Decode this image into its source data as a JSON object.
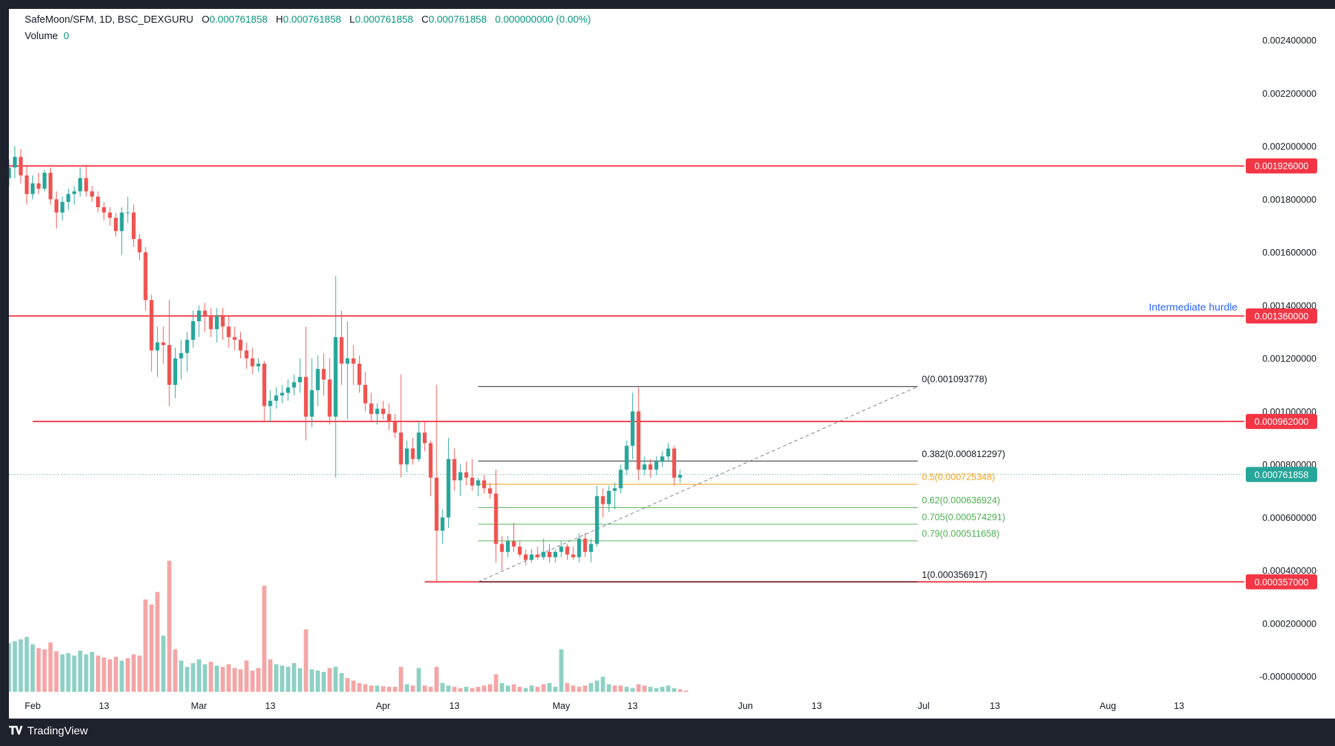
{
  "legend": {
    "symbol": "SafeMoon/SFM, 1D, BSC_DEXGURU",
    "open_label": "O",
    "open": "0.000761858",
    "high_label": "H",
    "high": "0.000761858",
    "low_label": "L",
    "low": "0.000761858",
    "close_label": "C",
    "close": "0.000761858",
    "change": "0.000000000 (0.00%)",
    "volume_label": "Volume",
    "volume": "0"
  },
  "footer": {
    "brand": "TradingView"
  },
  "colors": {
    "up": "#26a69a",
    "down": "#ef5350",
    "up_volume": "#8fd0c4",
    "down_volume": "#f4a6a6",
    "level_line": "#f23645",
    "fib_base": "#131722",
    "fib_half": "#f7a21b",
    "fib_green": "#4caf50",
    "annotation": "#2962ff",
    "grid": "#f0f3fa"
  },
  "chart_data": {
    "type": "candlestick",
    "y_axis": {
      "min": -5e-05,
      "max": 0.0025,
      "ticks": [
        {
          "value": 0.0024,
          "label": "0.002400000"
        },
        {
          "value": 0.0022,
          "label": "0.002200000"
        },
        {
          "value": 0.002,
          "label": "0.002000000"
        },
        {
          "value": 0.0018,
          "label": "0.001800000"
        },
        {
          "value": 0.0016,
          "label": "0.001600000"
        },
        {
          "value": 0.0014,
          "label": "0.001400000"
        },
        {
          "value": 0.0012,
          "label": "0.001200000"
        },
        {
          "value": 0.001,
          "label": "0.001000000"
        },
        {
          "value": 0.0008,
          "label": "0.000800000"
        },
        {
          "value": 0.0006,
          "label": "0.000600000"
        },
        {
          "value": 0.0004,
          "label": "0.000400000"
        },
        {
          "value": 0.0002,
          "label": "0.000200000"
        },
        {
          "value": 0.0,
          "label": "-0.000000000"
        }
      ]
    },
    "x_axis": {
      "start": "2022-01-28",
      "end": "2022-08-24",
      "ticks": [
        {
          "date": "2022-02-01",
          "label": "Feb"
        },
        {
          "date": "2022-02-13",
          "label": "13"
        },
        {
          "date": "2022-03-01",
          "label": "Mar"
        },
        {
          "date": "2022-03-13",
          "label": "13"
        },
        {
          "date": "2022-04-01",
          "label": "Apr"
        },
        {
          "date": "2022-04-13",
          "label": "13"
        },
        {
          "date": "2022-05-01",
          "label": "May"
        },
        {
          "date": "2022-05-13",
          "label": "13"
        },
        {
          "date": "2022-06-01",
          "label": "Jun"
        },
        {
          "date": "2022-06-13",
          "label": "13"
        },
        {
          "date": "2022-07-01",
          "label": "Jul"
        },
        {
          "date": "2022-07-13",
          "label": "13"
        },
        {
          "date": "2022-08-01",
          "label": "Aug"
        },
        {
          "date": "2022-08-13",
          "label": "13"
        }
      ]
    },
    "candles_start": "2022-01-28",
    "candles": [
      [
        0.00188,
        0.00195,
        0.00185,
        0.00192
      ],
      [
        0.00192,
        0.002,
        0.00188,
        0.00196
      ],
      [
        0.00196,
        0.00199,
        0.00186,
        0.00189
      ],
      [
        0.00189,
        0.00193,
        0.00178,
        0.00182
      ],
      [
        0.00182,
        0.00189,
        0.0018,
        0.00186
      ],
      [
        0.00186,
        0.0019,
        0.00182,
        0.00184
      ],
      [
        0.00184,
        0.00191,
        0.00183,
        0.0019
      ],
      [
        0.0019,
        0.00192,
        0.00178,
        0.0018
      ],
      [
        0.0018,
        0.00183,
        0.00169,
        0.00175
      ],
      [
        0.00175,
        0.00181,
        0.00172,
        0.00179
      ],
      [
        0.00179,
        0.00184,
        0.00176,
        0.00182
      ],
      [
        0.00182,
        0.00185,
        0.00178,
        0.00183
      ],
      [
        0.00183,
        0.00192,
        0.00181,
        0.00188
      ],
      [
        0.00188,
        0.00193,
        0.00181,
        0.00183
      ],
      [
        0.00183,
        0.00185,
        0.00179,
        0.00181
      ],
      [
        0.00181,
        0.00183,
        0.00175,
        0.00177
      ],
      [
        0.00177,
        0.00179,
        0.00172,
        0.00175
      ],
      [
        0.00175,
        0.00177,
        0.0017,
        0.00173
      ],
      [
        0.00173,
        0.00175,
        0.00166,
        0.00168
      ],
      [
        0.00168,
        0.00177,
        0.00159,
        0.00175
      ],
      [
        0.00175,
        0.00181,
        0.00171,
        0.00175
      ],
      [
        0.00175,
        0.00178,
        0.00162,
        0.00165
      ],
      [
        0.00165,
        0.00167,
        0.00157,
        0.0016
      ],
      [
        0.0016,
        0.00162,
        0.00138,
        0.00142
      ],
      [
        0.00142,
        0.00144,
        0.00115,
        0.00123
      ],
      [
        0.00123,
        0.00132,
        0.00113,
        0.00126
      ],
      [
        0.00126,
        0.00132,
        0.00118,
        0.00125
      ],
      [
        0.00125,
        0.00142,
        0.00102,
        0.0011
      ],
      [
        0.0011,
        0.00124,
        0.00105,
        0.0012
      ],
      [
        0.0012,
        0.00127,
        0.00112,
        0.00122
      ],
      [
        0.00122,
        0.0013,
        0.00115,
        0.00127
      ],
      [
        0.00127,
        0.00138,
        0.00124,
        0.00134
      ],
      [
        0.00134,
        0.0014,
        0.00128,
        0.00138
      ],
      [
        0.00138,
        0.00141,
        0.0013,
        0.00136
      ],
      [
        0.00136,
        0.00139,
        0.00128,
        0.00131
      ],
      [
        0.00131,
        0.00139,
        0.00126,
        0.00136
      ],
      [
        0.00136,
        0.00139,
        0.00127,
        0.00132
      ],
      [
        0.00132,
        0.00136,
        0.00124,
        0.00128
      ],
      [
        0.00128,
        0.00132,
        0.00123,
        0.00127
      ],
      [
        0.00127,
        0.0013,
        0.0012,
        0.00123
      ],
      [
        0.00123,
        0.00126,
        0.00116,
        0.0012
      ],
      [
        0.0012,
        0.00124,
        0.00114,
        0.00117
      ],
      [
        0.00117,
        0.0012,
        0.00115,
        0.00118
      ],
      [
        0.00118,
        0.00119,
        0.00096,
        0.00102
      ],
      [
        0.00102,
        0.00108,
        0.00096,
        0.00104
      ],
      [
        0.00104,
        0.00109,
        0.00101,
        0.00106
      ],
      [
        0.00106,
        0.0011,
        0.00103,
        0.00107
      ],
      [
        0.00107,
        0.00112,
        0.00104,
        0.00109
      ],
      [
        0.00109,
        0.00114,
        0.00106,
        0.00111
      ],
      [
        0.00111,
        0.0012,
        0.00107,
        0.00113
      ],
      [
        0.00113,
        0.00132,
        0.00089,
        0.00098
      ],
      [
        0.00098,
        0.0012,
        0.00094,
        0.00108
      ],
      [
        0.00108,
        0.00121,
        0.00102,
        0.00116
      ],
      [
        0.00116,
        0.00122,
        0.00106,
        0.00112
      ],
      [
        0.00112,
        0.0012,
        0.00095,
        0.00098
      ],
      [
        0.00098,
        0.00151,
        0.00075,
        0.00128
      ],
      [
        0.00128,
        0.00138,
        0.0011,
        0.00118
      ],
      [
        0.00118,
        0.00134,
        0.00097,
        0.0012
      ],
      [
        0.0012,
        0.00125,
        0.0011,
        0.00118
      ],
      [
        0.00118,
        0.00121,
        0.00107,
        0.0011
      ],
      [
        0.0011,
        0.00115,
        0.001,
        0.00103
      ],
      [
        0.00103,
        0.00107,
        0.00096,
        0.00099
      ],
      [
        0.00099,
        0.00103,
        0.00095,
        0.00101
      ],
      [
        0.00101,
        0.00104,
        0.00097,
        0.00099
      ],
      [
        0.00099,
        0.00103,
        0.00093,
        0.00096
      ],
      [
        0.00096,
        0.00099,
        0.0009,
        0.00092
      ],
      [
        0.00092,
        0.00114,
        0.00075,
        0.0008
      ],
      [
        0.0008,
        0.00089,
        0.00077,
        0.00086
      ],
      [
        0.00086,
        0.0009,
        0.0008,
        0.00082
      ],
      [
        0.00082,
        0.00096,
        0.00081,
        0.00092
      ],
      [
        0.00092,
        0.00096,
        0.00085,
        0.00088
      ],
      [
        0.00088,
        0.00089,
        0.00068,
        0.00075
      ],
      [
        0.00075,
        0.0011,
        0.00036,
        0.00055
      ],
      [
        0.00055,
        0.00063,
        0.0005,
        0.0006
      ],
      [
        0.0006,
        0.0009,
        0.00056,
        0.00082
      ],
      [
        0.00082,
        0.00086,
        0.0007,
        0.00074
      ],
      [
        0.00074,
        0.0008,
        0.00068,
        0.00077
      ],
      [
        0.00077,
        0.00081,
        0.00072,
        0.00075
      ],
      [
        0.00075,
        0.00082,
        0.0007,
        0.00072
      ],
      [
        0.00072,
        0.00075,
        0.00068,
        0.00074
      ],
      [
        0.00074,
        0.00076,
        0.00069,
        0.00071
      ],
      [
        0.00071,
        0.00073,
        0.00067,
        0.00069
      ],
      [
        0.00069,
        0.00078,
        0.00043,
        0.0005
      ],
      [
        0.0005,
        0.00053,
        0.0004,
        0.00047
      ],
      [
        0.00047,
        0.00053,
        0.00045,
        0.00051
      ],
      [
        0.00051,
        0.00058,
        0.00047,
        0.00049
      ],
      [
        0.00049,
        0.00051,
        0.00045,
        0.00046
      ],
      [
        0.00046,
        0.00048,
        0.00042,
        0.00044
      ],
      [
        0.00044,
        0.00048,
        0.00043,
        0.00046
      ],
      [
        0.00046,
        0.00049,
        0.00044,
        0.00045
      ],
      [
        0.00045,
        0.00052,
        0.00044,
        0.00047
      ],
      [
        0.00047,
        0.0005,
        0.00043,
        0.00045
      ],
      [
        0.00045,
        0.00048,
        0.00043,
        0.00047
      ],
      [
        0.00047,
        0.00051,
        0.00045,
        0.00049
      ],
      [
        0.00049,
        0.0005,
        0.00044,
        0.00046
      ],
      [
        0.00046,
        0.00049,
        0.00044,
        0.00045
      ],
      [
        0.00045,
        0.00054,
        0.00043,
        0.00052
      ],
      [
        0.00052,
        0.00054,
        0.00045,
        0.00047
      ],
      [
        0.00047,
        0.00052,
        0.00043,
        0.0005
      ],
      [
        0.0005,
        0.00072,
        0.00049,
        0.00068
      ],
      [
        0.00068,
        0.00071,
        0.0006,
        0.00065
      ],
      [
        0.00065,
        0.00072,
        0.00062,
        0.0007
      ],
      [
        0.0007,
        0.00073,
        0.00063,
        0.00071
      ],
      [
        0.00071,
        0.0008,
        0.00069,
        0.00078
      ],
      [
        0.00078,
        0.00089,
        0.00076,
        0.00087
      ],
      [
        0.00087,
        0.00107,
        0.00082,
        0.001
      ],
      [
        0.001,
        0.00109,
        0.00074,
        0.00078
      ],
      [
        0.00078,
        0.00083,
        0.00076,
        0.0008
      ],
      [
        0.0008,
        0.00082,
        0.00075,
        0.00078
      ],
      [
        0.00078,
        0.00083,
        0.00076,
        0.00081
      ],
      [
        0.00081,
        0.00085,
        0.00079,
        0.00083
      ],
      [
        0.00083,
        0.00088,
        0.00081,
        0.00086
      ],
      [
        0.00086,
        0.00087,
        0.00072,
        0.00075
      ],
      [
        0.00075,
        0.00078,
        0.00073,
        0.00076
      ]
    ],
    "volume": [
      [
        78,
        1
      ],
      [
        81,
        1
      ],
      [
        84,
        1
      ],
      [
        88,
        1
      ],
      [
        76,
        1
      ],
      [
        70,
        0
      ],
      [
        68,
        0
      ],
      [
        79,
        0
      ],
      [
        65,
        0
      ],
      [
        60,
        1
      ],
      [
        62,
        1
      ],
      [
        58,
        1
      ],
      [
        66,
        1
      ],
      [
        60,
        1
      ],
      [
        64,
        1
      ],
      [
        58,
        0
      ],
      [
        55,
        0
      ],
      [
        52,
        0
      ],
      [
        56,
        0
      ],
      [
        50,
        1
      ],
      [
        54,
        0
      ],
      [
        60,
        0
      ],
      [
        58,
        0
      ],
      [
        148,
        0
      ],
      [
        140,
        0
      ],
      [
        160,
        0
      ],
      [
        90,
        1
      ],
      [
        210,
        0
      ],
      [
        68,
        0
      ],
      [
        50,
        1
      ],
      [
        40,
        1
      ],
      [
        46,
        1
      ],
      [
        52,
        1
      ],
      [
        44,
        1
      ],
      [
        48,
        0
      ],
      [
        42,
        1
      ],
      [
        40,
        0
      ],
      [
        44,
        0
      ],
      [
        38,
        0
      ],
      [
        36,
        0
      ],
      [
        50,
        0
      ],
      [
        34,
        0
      ],
      [
        38,
        0
      ],
      [
        170,
        0
      ],
      [
        52,
        0
      ],
      [
        44,
        1
      ],
      [
        42,
        1
      ],
      [
        40,
        1
      ],
      [
        46,
        1
      ],
      [
        38,
        1
      ],
      [
        100,
        0
      ],
      [
        36,
        1
      ],
      [
        34,
        1
      ],
      [
        32,
        1
      ],
      [
        38,
        0
      ],
      [
        40,
        1
      ],
      [
        30,
        1
      ],
      [
        22,
        0
      ],
      [
        18,
        0
      ],
      [
        14,
        0
      ],
      [
        12,
        0
      ],
      [
        10,
        0
      ],
      [
        10,
        1
      ],
      [
        9,
        0
      ],
      [
        8,
        0
      ],
      [
        8,
        0
      ],
      [
        40,
        0
      ],
      [
        12,
        1
      ],
      [
        10,
        0
      ],
      [
        38,
        1
      ],
      [
        10,
        0
      ],
      [
        8,
        0
      ],
      [
        40,
        0
      ],
      [
        14,
        1
      ],
      [
        10,
        1
      ],
      [
        8,
        0
      ],
      [
        6,
        0
      ],
      [
        8,
        1
      ],
      [
        6,
        0
      ],
      [
        8,
        0
      ],
      [
        10,
        0
      ],
      [
        12,
        0
      ],
      [
        28,
        0
      ],
      [
        14,
        1
      ],
      [
        10,
        1
      ],
      [
        12,
        0
      ],
      [
        8,
        0
      ],
      [
        6,
        1
      ],
      [
        10,
        1
      ],
      [
        8,
        0
      ],
      [
        12,
        0
      ],
      [
        14,
        1
      ],
      [
        8,
        1
      ],
      [
        68,
        1
      ],
      [
        14,
        0
      ],
      [
        10,
        0
      ],
      [
        8,
        0
      ],
      [
        10,
        0
      ],
      [
        14,
        1
      ],
      [
        18,
        1
      ],
      [
        24,
        1
      ],
      [
        12,
        1
      ],
      [
        10,
        0
      ],
      [
        10,
        0
      ],
      [
        8,
        1
      ],
      [
        6,
        1
      ],
      [
        12,
        0
      ],
      [
        10,
        0
      ],
      [
        8,
        1
      ],
      [
        6,
        1
      ],
      [
        8,
        1
      ],
      [
        10,
        1
      ],
      [
        6,
        1
      ],
      [
        4,
        0
      ],
      [
        2,
        0
      ]
    ],
    "volume_scale_max": 220,
    "horizontal_levels": [
      {
        "value": 0.001926,
        "label": "0.001926000",
        "start": "2022-01-28"
      },
      {
        "value": 0.00136,
        "label": "0.001360000",
        "start": "2022-01-28",
        "annotation": "Intermediate hurdle"
      },
      {
        "value": 0.000962,
        "label": "0.000962000",
        "start": "2022-02-01"
      },
      {
        "value": 0.000357,
        "label": "0.000357000",
        "start": "2022-04-08"
      }
    ],
    "last_price": {
      "value": 0.000761858,
      "label": "0.000761858"
    },
    "fibonacci": {
      "start": "2022-04-17",
      "end": "2022-06-30",
      "levels": [
        {
          "value": 0.001093778,
          "label": "0(0.001093778)",
          "color": "#131722"
        },
        {
          "value": 0.000812297,
          "label": "0.382(0.000812297)",
          "color": "#131722"
        },
        {
          "value": 0.000725348,
          "label": "0.5(0.000725348)",
          "color": "#f7a21b"
        },
        {
          "value": 0.000636924,
          "label": "0.62(0.000636924)",
          "color": "#4caf50"
        },
        {
          "value": 0.000574291,
          "label": "0.705(0.000574291)",
          "color": "#4caf50"
        },
        {
          "value": 0.000511658,
          "label": "0.79(0.000511658)",
          "color": "#4caf50"
        },
        {
          "value": 0.000356917,
          "label": "1(0.000356917)",
          "color": "#131722"
        }
      ],
      "trend_line": {
        "from_date": "2022-04-17",
        "from_value": 0.000356917,
        "to_date": "2022-06-30",
        "to_value": 0.001093778
      }
    }
  }
}
